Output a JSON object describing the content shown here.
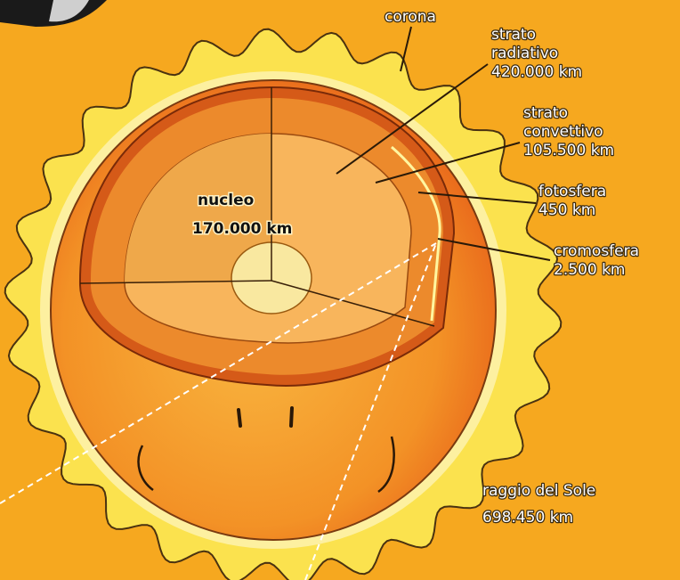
{
  "nucleus": {
    "name": "nucleo",
    "value": "170.000 km"
  },
  "labels": [
    {
      "name": [
        "corona"
      ]
    },
    {
      "name": [
        "strato",
        "radiativo"
      ],
      "value": "420.000 km"
    },
    {
      "name": [
        "strato",
        "convettivo"
      ],
      "value": "105.500 km"
    },
    {
      "name": [
        "fotosfera"
      ],
      "value": "450 km"
    },
    {
      "name": [
        "cromosfera"
      ],
      "value": "2.500 km"
    }
  ],
  "radius": {
    "name": "raggio del Sole",
    "value": "698.450 km"
  }
}
